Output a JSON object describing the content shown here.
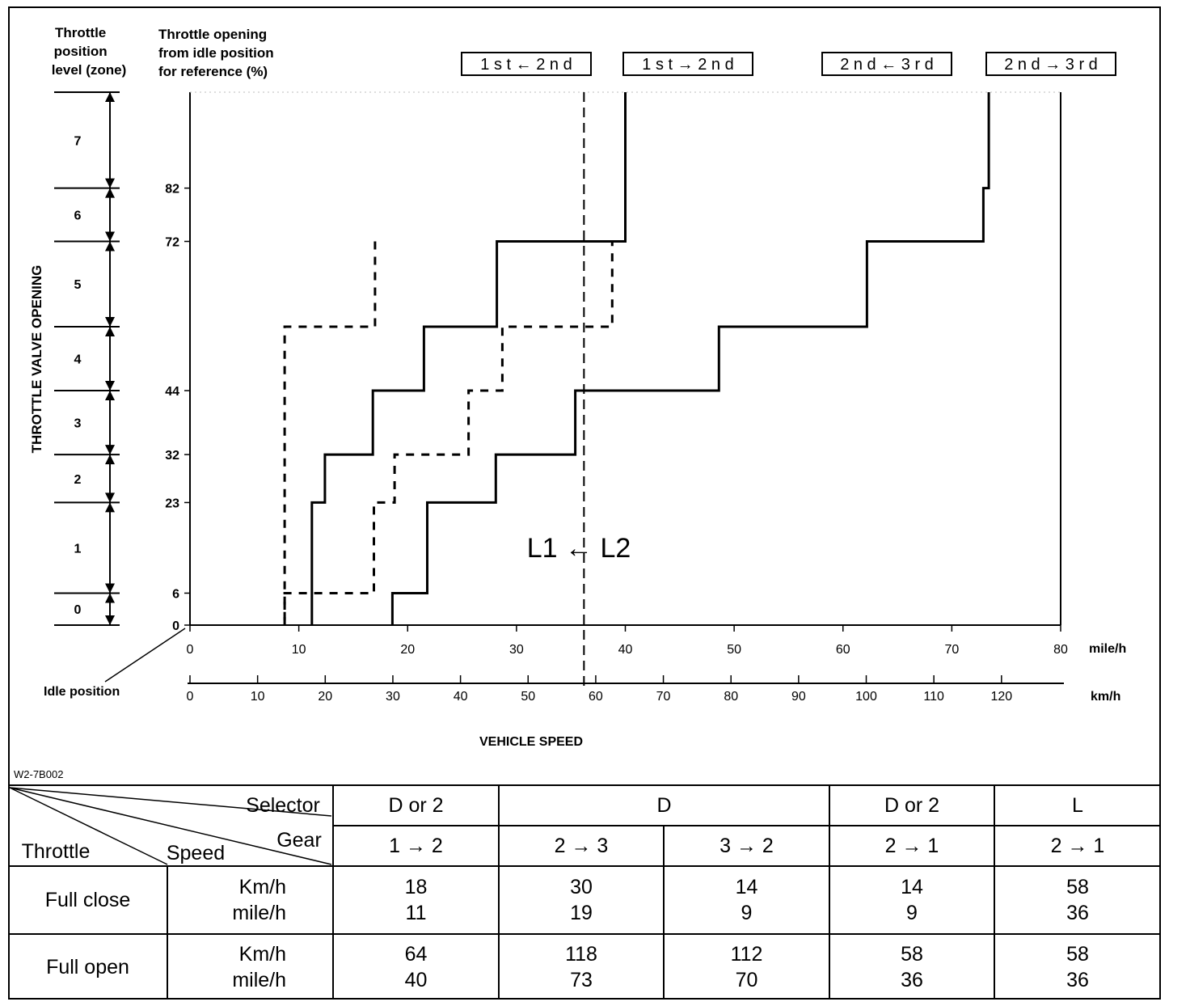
{
  "chart_data": {
    "type": "line",
    "code": "W2-7B002",
    "left_header_zone": "Throttle\nposition\nlevel (zone)",
    "left_header_opening": "Throttle opening\nfrom idle position\nfor reference (%)",
    "ylabel": "THROTTLE VALVE OPENING",
    "xlabel": "VEHICLE SPEED",
    "x_unit_mph": "mile/h",
    "x_unit_kmh": "km/h",
    "idle_label": "Idle position",
    "xlim_mph": [
      0,
      80
    ],
    "xlim_kmh": [
      0,
      128
    ],
    "x_ticks_mph": [
      "0",
      "10",
      "20",
      "30",
      "40",
      "50",
      "60",
      "70",
      "80"
    ],
    "x_ticks_kmh": [
      "0",
      "10",
      "20",
      "30",
      "40",
      "50",
      "60",
      "70",
      "80",
      "90",
      "100",
      "110",
      "120"
    ],
    "y_ticks": [
      "0",
      "6",
      "23",
      "32",
      "44",
      "72",
      "82"
    ],
    "zones": [
      "0",
      "1",
      "2",
      "3",
      "4",
      "5",
      "6",
      "7"
    ],
    "zone_bounds": [
      0,
      6,
      23,
      32,
      44,
      56,
      72,
      82,
      100
    ],
    "l_annotation": "L1 ← L2",
    "l_line_mph": 36.2,
    "series": [
      {
        "name": "1 s t ← 2 n d",
        "style": "dashed",
        "points": [
          [
            8.7,
            0
          ],
          [
            8.7,
            6
          ],
          [
            16.9,
            6
          ],
          [
            16.9,
            23
          ],
          [
            18.8,
            23
          ],
          [
            18.8,
            32
          ],
          [
            25.6,
            32
          ],
          [
            25.6,
            44
          ],
          [
            28.7,
            44
          ],
          [
            28.7,
            56
          ],
          [
            34.2,
            56
          ],
          [
            34.2,
            56
          ],
          [
            38.8,
            56
          ],
          [
            38.8,
            72
          ],
          [
            36.2,
            72
          ]
        ]
      },
      {
        "name": "1 s t → 2 n d",
        "style": "solid",
        "points": [
          [
            11.2,
            0
          ],
          [
            11.2,
            23
          ],
          [
            12.4,
            23
          ],
          [
            12.4,
            32
          ],
          [
            16.8,
            32
          ],
          [
            16.8,
            44
          ],
          [
            21.5,
            44
          ],
          [
            21.5,
            56
          ],
          [
            28.2,
            56
          ],
          [
            28.2,
            72
          ],
          [
            40.0,
            72
          ],
          [
            40.0,
            100
          ]
        ]
      },
      {
        "name": "2 n d ← 3 r d",
        "style": "dashed",
        "points": [
          [
            17.0,
            72
          ],
          [
            17.0,
            56
          ],
          [
            8.7,
            56
          ],
          [
            8.7,
            0
          ]
        ]
      },
      {
        "name": "2 n d → 3 r d",
        "style": "solid",
        "points": [
          [
            18.6,
            0
          ],
          [
            18.6,
            6
          ],
          [
            21.8,
            6
          ],
          [
            21.8,
            23
          ],
          [
            28.1,
            23
          ],
          [
            28.1,
            32
          ],
          [
            35.4,
            32
          ],
          [
            35.4,
            44
          ],
          [
            48.6,
            44
          ],
          [
            48.6,
            56
          ],
          [
            62.2,
            56
          ],
          [
            62.2,
            72
          ],
          [
            72.9,
            72
          ],
          [
            72.9,
            82
          ],
          [
            73.4,
            82
          ],
          [
            73.4,
            100
          ]
        ]
      }
    ],
    "legend_boxes": [
      "1 s t ← 2 n d",
      "1 s t → 2 n d",
      "2 n d ← 3 r d",
      "2 n d → 3 r d"
    ]
  },
  "table": {
    "corner_selector": "Selector",
    "corner_gear": "Gear",
    "corner_throttle": "Throttle",
    "corner_speed": "Speed",
    "selectors": [
      "D or 2",
      "D",
      "D or 2",
      "L"
    ],
    "gears": [
      "1 → 2",
      "2 → 3",
      "3 → 2",
      "2 → 1",
      "2 → 1"
    ],
    "rows": [
      {
        "throttle": "Full close",
        "unit_kmh": "Km/h",
        "unit_mph": "mile/h",
        "kmh": [
          "18",
          "30",
          "14",
          "14",
          "58"
        ],
        "mph": [
          "11",
          "19",
          "9",
          "9",
          "36"
        ]
      },
      {
        "throttle": "Full open",
        "unit_kmh": "Km/h",
        "unit_mph": "mile/h",
        "kmh": [
          "64",
          "118",
          "112",
          "58",
          "58"
        ],
        "mph": [
          "40",
          "73",
          "70",
          "36",
          "36"
        ]
      }
    ]
  }
}
